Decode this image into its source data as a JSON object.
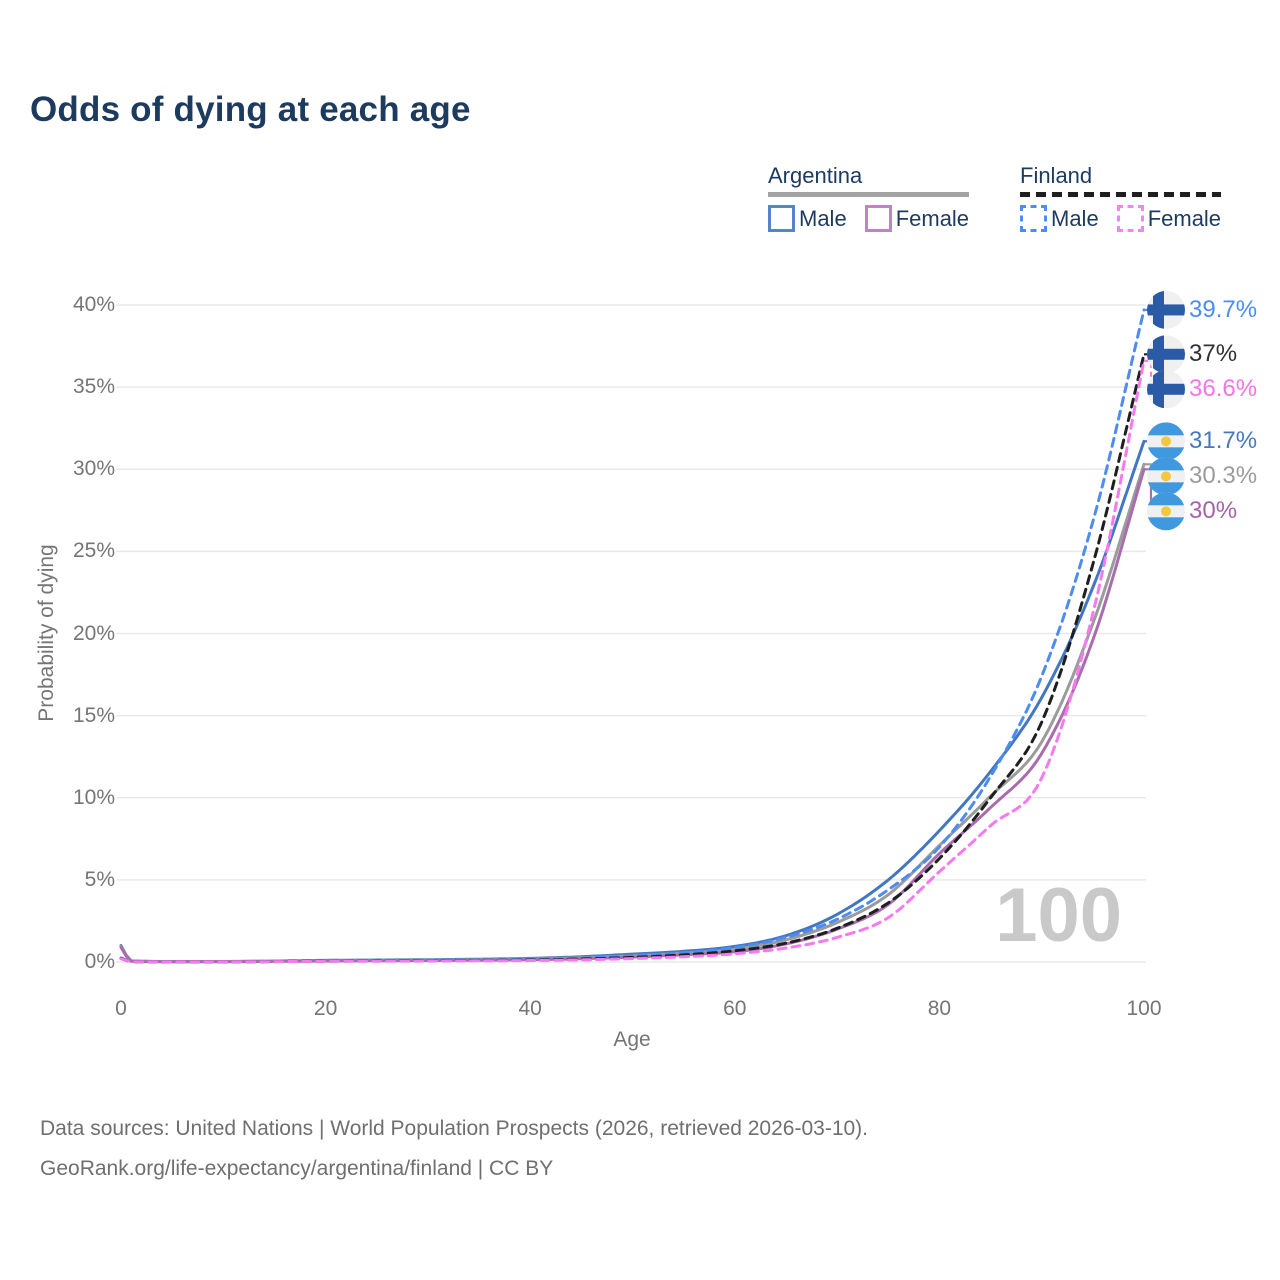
{
  "title": "Odds of dying at each age",
  "watermark": "100",
  "legend": {
    "groups": [
      {
        "name": "Argentina",
        "underline_style": "solid",
        "underline_color": "#a3a3a3",
        "items": [
          {
            "label": "Male",
            "color": "#5585c9",
            "dashed": false
          },
          {
            "label": "Female",
            "color": "#c083c4",
            "dashed": false
          }
        ]
      },
      {
        "name": "Finland",
        "underline_style": "dashed",
        "underline_color": "#1f1f1f",
        "items": [
          {
            "label": "Male",
            "color": "#4d8cf2",
            "dashed": true
          },
          {
            "label": "Female",
            "color": "#f882f0",
            "dashed": true
          }
        ]
      }
    ]
  },
  "chart_data": {
    "type": "line",
    "title": "Odds of dying at each age",
    "xlabel": "Age",
    "ylabel": "Probability of dying",
    "xlim": [
      0,
      100
    ],
    "ylim": [
      0,
      40
    ],
    "grid": true,
    "legend_position": "top-right",
    "x_ticks": [
      0,
      20,
      40,
      60,
      80,
      100
    ],
    "y_ticks": [
      0,
      5,
      10,
      15,
      20,
      25,
      30,
      35,
      40
    ],
    "y_tick_labels": [
      "0%",
      "5%",
      "10%",
      "15%",
      "20%",
      "25%",
      "30%",
      "35%",
      "40%"
    ],
    "ages": [
      0,
      1,
      5,
      10,
      20,
      30,
      40,
      45,
      50,
      55,
      60,
      65,
      70,
      75,
      80,
      85,
      90,
      95,
      100
    ],
    "series": [
      {
        "name": "Argentina Male",
        "color": "#4377c2",
        "dashed": false,
        "flag": "argentina",
        "end_label": "31.7%",
        "end_value": 31.7,
        "label_color": "#4678c0",
        "values": [
          1.0,
          0.07,
          0.03,
          0.03,
          0.1,
          0.14,
          0.22,
          0.32,
          0.48,
          0.65,
          0.95,
          1.6,
          2.9,
          5.0,
          8.0,
          11.6,
          16.1,
          22.8,
          31.7
        ]
      },
      {
        "name": "Argentina Both sexes",
        "color": "#9b9b9b",
        "dashed": false,
        "flag": "argentina",
        "end_label": "30.3%",
        "end_value": 30.3,
        "label_color": "#9b9b9b",
        "values": [
          0.95,
          0.06,
          0.02,
          0.03,
          0.08,
          0.11,
          0.18,
          0.26,
          0.38,
          0.54,
          0.78,
          1.35,
          2.4,
          4.1,
          7.1,
          10.1,
          13.4,
          20.6,
          30.3
        ]
      },
      {
        "name": "Argentina Female",
        "color": "#a96cae",
        "dashed": false,
        "flag": "argentina",
        "end_label": "30%",
        "end_value": 30.0,
        "label_color": "#a562a8",
        "values": [
          0.9,
          0.05,
          0.02,
          0.02,
          0.06,
          0.09,
          0.14,
          0.2,
          0.3,
          0.44,
          0.62,
          1.1,
          2.0,
          3.5,
          6.6,
          9.4,
          12.7,
          19.6,
          30.0
        ]
      },
      {
        "name": "Finland Male",
        "color": "#4d8cf2",
        "dashed": true,
        "flag": "finland",
        "end_label": "39.7%",
        "end_value": 39.7,
        "label_color": "#4a8cf5",
        "values": [
          0.25,
          0.03,
          0.01,
          0.02,
          0.07,
          0.1,
          0.16,
          0.24,
          0.37,
          0.56,
          0.88,
          1.5,
          2.6,
          4.4,
          7.0,
          11.3,
          17.4,
          26.8,
          39.7
        ]
      },
      {
        "name": "Finland Both sexes",
        "color": "#1f1f1f",
        "dashed": true,
        "flag": "finland",
        "end_label": "37%",
        "end_value": 37.0,
        "label_color": "#303030",
        "values": [
          0.22,
          0.02,
          0.01,
          0.01,
          0.05,
          0.08,
          0.12,
          0.18,
          0.28,
          0.43,
          0.68,
          1.15,
          2.05,
          3.6,
          6.3,
          10.0,
          14.6,
          24.2,
          37.0
        ]
      },
      {
        "name": "Finland Female",
        "color": "#f779ef",
        "dashed": true,
        "flag": "finland",
        "end_label": "36.6%",
        "end_value": 36.6,
        "label_color": "#f673e8",
        "values": [
          0.2,
          0.02,
          0.01,
          0.01,
          0.04,
          0.06,
          0.09,
          0.13,
          0.21,
          0.32,
          0.5,
          0.85,
          1.5,
          2.7,
          5.5,
          8.3,
          11.2,
          21.2,
          36.6
        ]
      }
    ]
  },
  "source_line1": "Data sources: United Nations | World Population Prospects (2026, retrieved 2026-03-10).",
  "source_line2": "GeoRank.org/life-expectancy/argentina/finland | CC BY"
}
